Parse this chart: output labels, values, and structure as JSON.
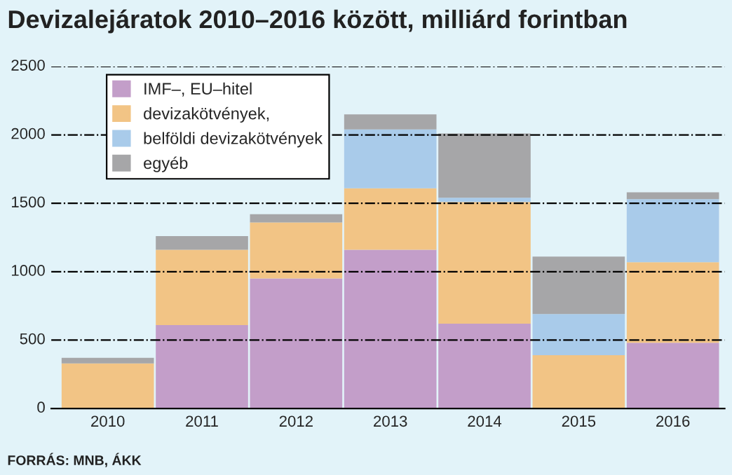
{
  "chart_data": {
    "type": "bar",
    "title": "Devizalejáratok 2010–2016 között, milliárd forintban",
    "stacked": true,
    "categories": [
      "2010",
      "2011",
      "2012",
      "2013",
      "2014",
      "2015",
      "2016"
    ],
    "series": [
      {
        "name": "IMF–, EU–hitel",
        "color": "#c39ec9",
        "values": [
          0,
          610,
          950,
          1160,
          620,
          0,
          480
        ]
      },
      {
        "name": "devizakötvények,",
        "color": "#f2c485",
        "values": [
          330,
          550,
          410,
          450,
          890,
          390,
          590
        ]
      },
      {
        "name": "belföldi devizakötvények",
        "color": "#a9cbea",
        "values": [
          0,
          0,
          0,
          430,
          30,
          300,
          460
        ]
      },
      {
        "name": "egyéb",
        "color": "#a6a6a8",
        "values": [
          40,
          100,
          60,
          110,
          470,
          420,
          50
        ]
      }
    ],
    "ylim": [
      0,
      2500
    ],
    "yticks": [
      0,
      500,
      1000,
      1500,
      2000,
      2500
    ],
    "grid": "y",
    "legend": "top left",
    "annotations": [
      "FORRÁS: MNB, ÁKK"
    ]
  }
}
